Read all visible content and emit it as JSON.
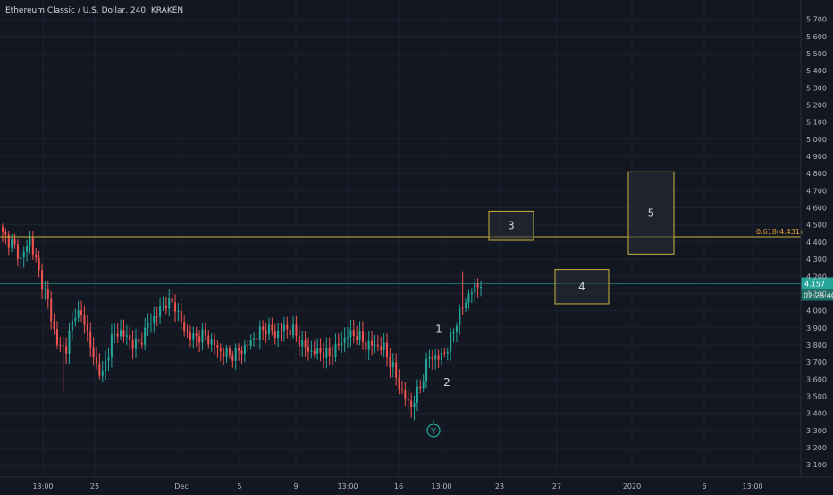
{
  "header": {
    "title": "Ethereum Classic / U.S. Dollar, 240, KRAKEN"
  },
  "colors": {
    "background": "#131722",
    "grid": "#1e2230",
    "axis_text": "#b2b5be",
    "up": "#26a69a",
    "down": "#ef5350",
    "fib_line": "#c9b13a",
    "box_border": "#c9b13a",
    "price_line": "#26a69a",
    "label_text": "#d1d4dc"
  },
  "chart_data": {
    "type": "candlestick",
    "ylim": [
      3.07,
      5.75
    ],
    "x_ticks": [
      "13:00",
      "25",
      "Dec",
      "5",
      "9",
      "13:00",
      "16",
      "13:00",
      "23",
      "27",
      "2020",
      "6",
      "13:00"
    ],
    "y_ticks": [
      "5.700",
      "5.600",
      "5.500",
      "5.400",
      "5.300",
      "5.200",
      "5.100",
      "5.000",
      "4.900",
      "4.800",
      "4.700",
      "4.600",
      "4.500",
      "4.400",
      "4.300",
      "4.200",
      "4.100",
      "4.000",
      "3.900",
      "3.800",
      "3.700",
      "3.600",
      "3.500",
      "3.400",
      "3.300",
      "3.200",
      "3.100"
    ],
    "anchors": [
      [
        0,
        4.44
      ],
      [
        3,
        4.4
      ],
      [
        6,
        4.3
      ],
      [
        9,
        4.42
      ],
      [
        12,
        4.22
      ],
      [
        15,
        4.05
      ],
      [
        18,
        3.8
      ],
      [
        21,
        3.78
      ],
      [
        24,
        4.0
      ],
      [
        27,
        3.94
      ],
      [
        30,
        3.72
      ],
      [
        33,
        3.62
      ],
      [
        36,
        3.84
      ],
      [
        39,
        3.88
      ],
      [
        42,
        3.82
      ],
      [
        45,
        3.8
      ],
      [
        48,
        3.92
      ],
      [
        51,
        3.98
      ],
      [
        54,
        4.05
      ],
      [
        57,
        4.03
      ],
      [
        60,
        3.88
      ],
      [
        63,
        3.84
      ],
      [
        66,
        3.86
      ],
      [
        69,
        3.82
      ],
      [
        72,
        3.76
      ],
      [
        75,
        3.74
      ],
      [
        78,
        3.76
      ],
      [
        81,
        3.8
      ],
      [
        84,
        3.86
      ],
      [
        87,
        3.9
      ],
      [
        90,
        3.86
      ],
      [
        93,
        3.9
      ],
      [
        96,
        3.88
      ],
      [
        99,
        3.8
      ],
      [
        102,
        3.76
      ],
      [
        105,
        3.76
      ],
      [
        108,
        3.74
      ],
      [
        111,
        3.8
      ],
      [
        114,
        3.86
      ],
      [
        117,
        3.86
      ],
      [
        120,
        3.8
      ],
      [
        123,
        3.8
      ],
      [
        126,
        3.78
      ],
      [
        129,
        3.66
      ],
      [
        132,
        3.52
      ],
      [
        135,
        3.44
      ],
      [
        138,
        3.56
      ],
      [
        141,
        3.74
      ],
      [
        144,
        3.72
      ],
      [
        147,
        3.78
      ],
      [
        150,
        3.94
      ],
      [
        153,
        4.06
      ],
      [
        156,
        4.14
      ],
      [
        158,
        4.16
      ]
    ],
    "annotations": {
      "wave_labels": [
        "1",
        "2",
        "Y"
      ],
      "boxes": [
        "3",
        "4",
        "5"
      ],
      "fib_label": "0.618(4.431)",
      "fib_value": 4.431
    },
    "last_price": {
      "value": 4.157,
      "label": "4.157",
      "countdown": "02:28:40"
    }
  }
}
